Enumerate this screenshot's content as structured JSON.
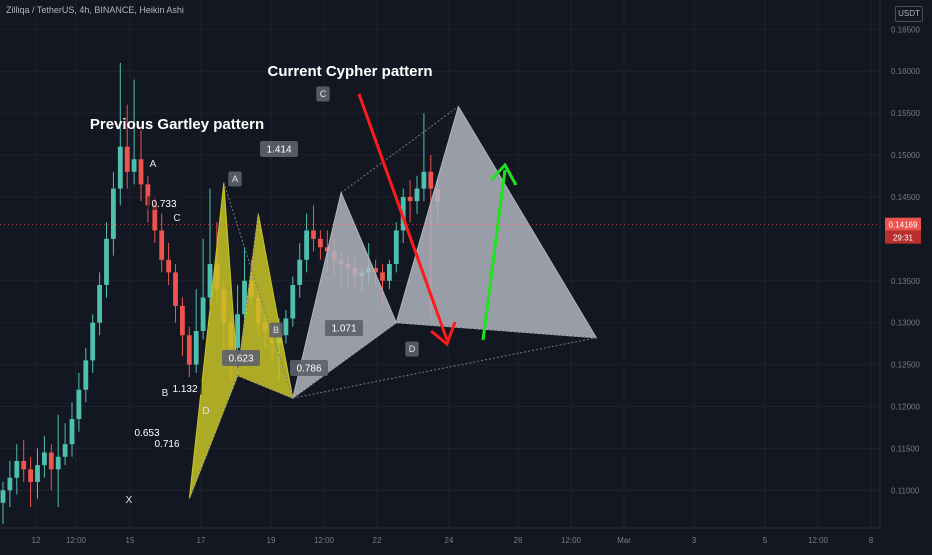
{
  "header": {
    "symbol_line": "Zilliqa / TetherUS, 4h, BINANCE, Heikin Ashi",
    "currency": "USDT"
  },
  "price_axis": {
    "ticks": [
      "0.16500",
      "0.16000",
      "0.15500",
      "0.15000",
      "0.14500",
      "0.13500",
      "0.13000",
      "0.12500",
      "0.12000",
      "0.11500",
      "0.11000"
    ],
    "last_price": "0.14169",
    "countdown": "29:31",
    "last_price_color": "#ef5350"
  },
  "time_axis": {
    "ticks": [
      "12",
      "12:00",
      "15",
      "17",
      "19",
      "12:00",
      "22",
      "24",
      "26",
      "12:00",
      "Mar",
      "3",
      "5",
      "12:00",
      "8"
    ]
  },
  "titles": {
    "gartley": "Previous Gartley pattern",
    "cypher": "Current Cypher pattern"
  },
  "chart_data": {
    "type": "candlestick",
    "annotation": "Heikin Ashi",
    "ylim": [
      0.1055,
      0.1685
    ],
    "candles": [
      {
        "o": 0.1085,
        "c": 0.11,
        "h": 0.111,
        "l": 0.106
      },
      {
        "o": 0.11,
        "c": 0.1115,
        "h": 0.1135,
        "l": 0.108
      },
      {
        "o": 0.1115,
        "c": 0.1135,
        "h": 0.1155,
        "l": 0.1095
      },
      {
        "o": 0.1135,
        "c": 0.1125,
        "h": 0.116,
        "l": 0.111
      },
      {
        "o": 0.1125,
        "c": 0.111,
        "h": 0.114,
        "l": 0.108
      },
      {
        "o": 0.111,
        "c": 0.113,
        "h": 0.115,
        "l": 0.109
      },
      {
        "o": 0.113,
        "c": 0.1145,
        "h": 0.1165,
        "l": 0.1115
      },
      {
        "o": 0.1145,
        "c": 0.1125,
        "h": 0.1155,
        "l": 0.11
      },
      {
        "o": 0.1125,
        "c": 0.114,
        "h": 0.119,
        "l": 0.108
      },
      {
        "o": 0.114,
        "c": 0.1155,
        "h": 0.118,
        "l": 0.113
      },
      {
        "o": 0.1155,
        "c": 0.1185,
        "h": 0.1205,
        "l": 0.114
      },
      {
        "o": 0.1185,
        "c": 0.122,
        "h": 0.124,
        "l": 0.117
      },
      {
        "o": 0.122,
        "c": 0.1255,
        "h": 0.127,
        "l": 0.1205
      },
      {
        "o": 0.1255,
        "c": 0.13,
        "h": 0.131,
        "l": 0.124
      },
      {
        "o": 0.13,
        "c": 0.1345,
        "h": 0.136,
        "l": 0.1285
      },
      {
        "o": 0.1345,
        "c": 0.14,
        "h": 0.142,
        "l": 0.133
      },
      {
        "o": 0.14,
        "c": 0.146,
        "h": 0.148,
        "l": 0.138
      },
      {
        "o": 0.146,
        "c": 0.151,
        "h": 0.161,
        "l": 0.144
      },
      {
        "o": 0.151,
        "c": 0.148,
        "h": 0.156,
        "l": 0.146
      },
      {
        "o": 0.148,
        "c": 0.1495,
        "h": 0.159,
        "l": 0.1465
      },
      {
        "o": 0.1495,
        "c": 0.1465,
        "h": 0.153,
        "l": 0.1445
      },
      {
        "o": 0.1465,
        "c": 0.144,
        "h": 0.1475,
        "l": 0.142
      },
      {
        "o": 0.144,
        "c": 0.141,
        "h": 0.145,
        "l": 0.1395
      },
      {
        "o": 0.141,
        "c": 0.1375,
        "h": 0.143,
        "l": 0.136
      },
      {
        "o": 0.1375,
        "c": 0.136,
        "h": 0.1395,
        "l": 0.1345
      },
      {
        "o": 0.136,
        "c": 0.132,
        "h": 0.137,
        "l": 0.13
      },
      {
        "o": 0.132,
        "c": 0.1285,
        "h": 0.133,
        "l": 0.126
      },
      {
        "o": 0.1285,
        "c": 0.125,
        "h": 0.1295,
        "l": 0.1235
      },
      {
        "o": 0.125,
        "c": 0.129,
        "h": 0.134,
        "l": 0.124
      },
      {
        "o": 0.129,
        "c": 0.133,
        "h": 0.14,
        "l": 0.128
      },
      {
        "o": 0.133,
        "c": 0.137,
        "h": 0.146,
        "l": 0.132
      },
      {
        "o": 0.137,
        "c": 0.134,
        "h": 0.142,
        "l": 0.1325
      },
      {
        "o": 0.134,
        "c": 0.13,
        "h": 0.135,
        "l": 0.126
      },
      {
        "o": 0.13,
        "c": 0.127,
        "h": 0.131,
        "l": 0.123
      },
      {
        "o": 0.127,
        "c": 0.131,
        "h": 0.1345,
        "l": 0.125
      },
      {
        "o": 0.131,
        "c": 0.135,
        "h": 0.139,
        "l": 0.13
      },
      {
        "o": 0.135,
        "c": 0.133,
        "h": 0.1375,
        "l": 0.132
      },
      {
        "o": 0.133,
        "c": 0.13,
        "h": 0.134,
        "l": 0.1285
      },
      {
        "o": 0.13,
        "c": 0.129,
        "h": 0.131,
        "l": 0.127
      },
      {
        "o": 0.129,
        "c": 0.1275,
        "h": 0.13,
        "l": 0.1255
      },
      {
        "o": 0.1275,
        "c": 0.1285,
        "h": 0.1305,
        "l": 0.123
      },
      {
        "o": 0.1285,
        "c": 0.1305,
        "h": 0.1315,
        "l": 0.1275
      },
      {
        "o": 0.1305,
        "c": 0.1345,
        "h": 0.1355,
        "l": 0.1295
      },
      {
        "o": 0.1345,
        "c": 0.1375,
        "h": 0.1395,
        "l": 0.133
      },
      {
        "o": 0.1375,
        "c": 0.141,
        "h": 0.143,
        "l": 0.136
      },
      {
        "o": 0.141,
        "c": 0.14,
        "h": 0.144,
        "l": 0.1385
      },
      {
        "o": 0.14,
        "c": 0.139,
        "h": 0.141,
        "l": 0.1375
      },
      {
        "o": 0.139,
        "c": 0.1385,
        "h": 0.141,
        "l": 0.136
      },
      {
        "o": 0.1385,
        "c": 0.1375,
        "h": 0.14,
        "l": 0.1355
      },
      {
        "o": 0.1375,
        "c": 0.137,
        "h": 0.1385,
        "l": 0.134
      },
      {
        "o": 0.137,
        "c": 0.1365,
        "h": 0.138,
        "l": 0.134
      },
      {
        "o": 0.1365,
        "c": 0.1355,
        "h": 0.138,
        "l": 0.134
      },
      {
        "o": 0.1355,
        "c": 0.136,
        "h": 0.1365,
        "l": 0.1335
      },
      {
        "o": 0.136,
        "c": 0.1365,
        "h": 0.1395,
        "l": 0.1345
      },
      {
        "o": 0.1365,
        "c": 0.136,
        "h": 0.1375,
        "l": 0.1345
      },
      {
        "o": 0.136,
        "c": 0.135,
        "h": 0.137,
        "l": 0.132
      },
      {
        "o": 0.135,
        "c": 0.137,
        "h": 0.1375,
        "l": 0.134
      },
      {
        "o": 0.137,
        "c": 0.141,
        "h": 0.142,
        "l": 0.136
      },
      {
        "o": 0.141,
        "c": 0.145,
        "h": 0.146,
        "l": 0.1395
      },
      {
        "o": 0.145,
        "c": 0.1445,
        "h": 0.147,
        "l": 0.142
      },
      {
        "o": 0.1445,
        "c": 0.146,
        "h": 0.1475,
        "l": 0.143
      },
      {
        "o": 0.146,
        "c": 0.148,
        "h": 0.155,
        "l": 0.1445
      },
      {
        "o": 0.148,
        "c": 0.146,
        "h": 0.15,
        "l": 0.1305
      },
      {
        "o": 0.146,
        "c": 0.1445,
        "h": 0.147,
        "l": 0.142
      }
    ],
    "patterns": [
      {
        "name": "Previous Gartley pattern",
        "points": [
          {
            "label": "X",
            "i": 27,
            "price": 0.109
          },
          {
            "label": "A",
            "i": 32,
            "price": 0.1467
          },
          {
            "label": "B",
            "i": 34,
            "price": 0.1237
          },
          {
            "label": "C",
            "i": 37,
            "price": 0.143
          },
          {
            "label": "D",
            "i": 42,
            "price": 0.121
          }
        ],
        "ratios": [
          {
            "text": "0.733",
            "a": "B",
            "b": "C"
          },
          {
            "text": "0.653",
            "a": "X",
            "b": "B"
          },
          {
            "text": "0.716",
            "a": "A",
            "b": "D"
          },
          {
            "text": "1.132",
            "a": "B",
            "b": "D"
          }
        ]
      },
      {
        "name": "Current Cypher pattern",
        "points": [
          {
            "label": "X",
            "i": 42,
            "price": 0.121
          },
          {
            "label": "A",
            "i": 49,
            "price": 0.1455
          },
          {
            "label": "B",
            "i": 57,
            "price": 0.13
          },
          {
            "label": "C",
            "i": 66,
            "price": 0.1558
          },
          {
            "label": "D",
            "i": 86,
            "price": 0.1282
          }
        ],
        "ratios": [
          {
            "text": "1.414",
            "a": "A",
            "b": "C"
          },
          {
            "text": "0.623",
            "a": "X",
            "b": "B"
          },
          {
            "text": "0.786",
            "a": "X",
            "b": "D"
          },
          {
            "text": "1.071",
            "a": "B",
            "b": "D"
          }
        ]
      }
    ],
    "colors": {
      "up": "#4fbfae",
      "down": "#ef5350",
      "gartley": "#c9c526",
      "cypher": "#b2b5be",
      "sell": "#ff1a1a",
      "buy": "#1fe31f"
    }
  }
}
